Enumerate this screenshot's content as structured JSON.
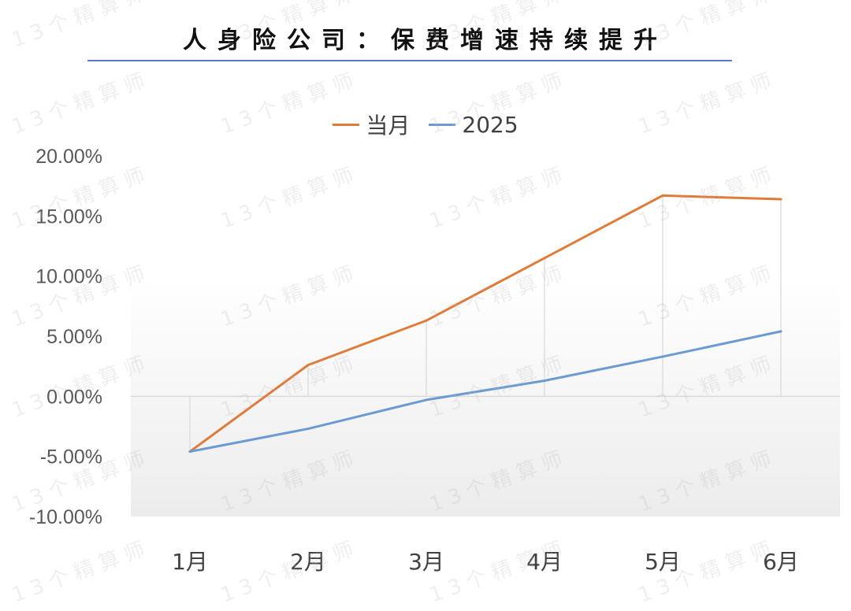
{
  "title": "人身险公司：保费增速持续提升",
  "watermark": "13个精算师",
  "chart_data": {
    "type": "line",
    "categories": [
      "1月",
      "2月",
      "3月",
      "4月",
      "5月",
      "6月"
    ],
    "series": [
      {
        "name": "当月",
        "color": "#e07b39",
        "values": [
          -4.6,
          2.6,
          6.3,
          11.5,
          16.7,
          16.4
        ]
      },
      {
        "name": "2025",
        "color": "#6b9bd2",
        "values": [
          -4.6,
          -2.7,
          -0.3,
          1.3,
          3.3,
          5.4
        ]
      }
    ],
    "yticks": [
      "20.00%",
      "15.00%",
      "10.00%",
      "5.00%",
      "0.00%",
      "-5.00%",
      "-10.00%"
    ],
    "ylim": [
      -10,
      20
    ],
    "legend_position": "top-center",
    "grid": "vertical drop lines"
  }
}
